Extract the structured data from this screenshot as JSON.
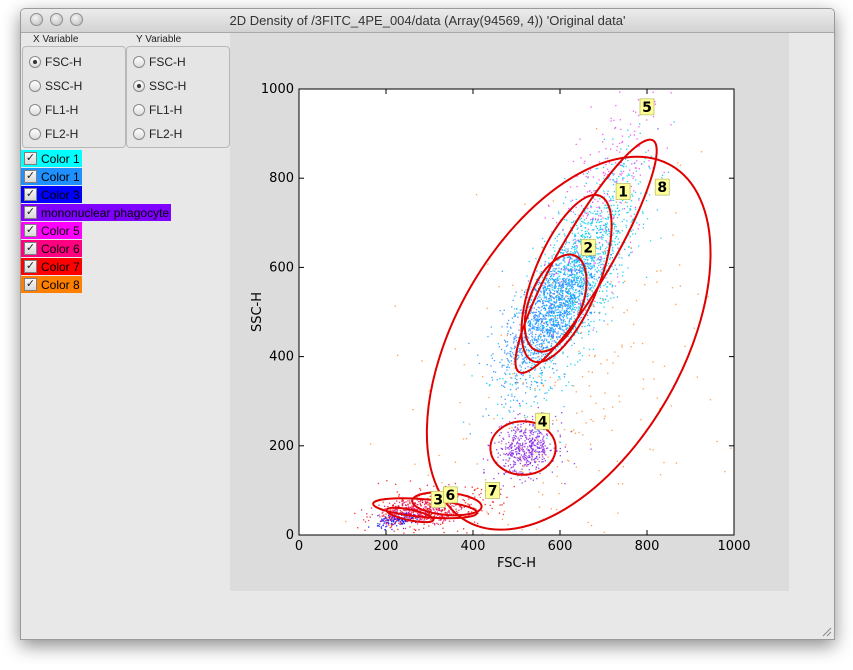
{
  "window": {
    "title": "2D Density of /3FITC_4PE_004/data (Array(94569, 4)) 'Original data'"
  },
  "x_variable": {
    "header": "X Variable",
    "options": [
      "FSC-H",
      "SSC-H",
      "FL1-H",
      "FL2-H"
    ],
    "selected": "FSC-H"
  },
  "y_variable": {
    "header": "Y Variable",
    "options": [
      "FSC-H",
      "SSC-H",
      "FL1-H",
      "FL2-H"
    ],
    "selected": "SSC-H"
  },
  "legend": {
    "items": [
      {
        "label": "Color 1",
        "color": "#00ffff",
        "text_color": "#000000",
        "checked": true
      },
      {
        "label": "Color 1",
        "color": "#1e90ff",
        "text_color": "#000000",
        "checked": true
      },
      {
        "label": "Color 3",
        "color": "#0000ff",
        "text_color": "#000000",
        "checked": true
      },
      {
        "label": "mononuclear phagocyte",
        "color": "#8000ff",
        "text_color": "#000000",
        "checked": true
      },
      {
        "label": "Color 5",
        "color": "#ff00ff",
        "text_color": "#000000",
        "checked": true
      },
      {
        "label": "Color 6",
        "color": "#ff0080",
        "text_color": "#000000",
        "checked": true
      },
      {
        "label": "Color 7",
        "color": "#ff0000",
        "text_color": "#000000",
        "checked": true
      },
      {
        "label": "Color 8",
        "color": "#ff8000",
        "text_color": "#000000",
        "checked": true
      }
    ]
  },
  "chart_data": {
    "type": "scatter",
    "xlabel": "FSC-H",
    "ylabel": "SSC-H",
    "xlim": [
      0,
      1000
    ],
    "ylim": [
      0,
      1000
    ],
    "xticks": [
      "0",
      "200",
      "400",
      "600",
      "800",
      "1000"
    ],
    "yticks": [
      "0",
      "200",
      "400",
      "600",
      "800",
      "1000"
    ],
    "background": "#ffffff",
    "ellipse_color": "#e00000",
    "ellipses": [
      {
        "label": "1",
        "cx": 615,
        "cy": 575,
        "rx": 75,
        "ry": 200,
        "angle": 22,
        "label_x": 745,
        "label_y": 770
      },
      {
        "label": "2",
        "cx": 590,
        "cy": 520,
        "rx": 60,
        "ry": 115,
        "angle": 22,
        "label_x": 665,
        "label_y": 645
      },
      {
        "label": "3",
        "cx": 255,
        "cy": 45,
        "rx": 55,
        "ry": 12,
        "angle": 12,
        "label_x": 320,
        "label_y": 80
      },
      {
        "label": "4",
        "cx": 515,
        "cy": 195,
        "rx": 75,
        "ry": 60,
        "angle": 0,
        "label_x": 560,
        "label_y": 255
      },
      {
        "label": "5",
        "cx": 660,
        "cy": 625,
        "rx": 60,
        "ry": 300,
        "angle": 30,
        "label_x": 800,
        "label_y": 960
      },
      {
        "label": "6",
        "cx": 290,
        "cy": 60,
        "rx": 120,
        "ry": 20,
        "angle": 5,
        "label_x": 348,
        "label_y": 90
      },
      {
        "label": "7",
        "cx": 340,
        "cy": 70,
        "rx": 80,
        "ry": 25,
        "angle": 5,
        "label_x": 445,
        "label_y": 100
      },
      {
        "label": "8",
        "cx": 620,
        "cy": 430,
        "rx": 260,
        "ry": 460,
        "angle": 30,
        "label_x": 835,
        "label_y": 780
      }
    ],
    "clusters": [
      {
        "name": "Color 1",
        "color": "#00ccee",
        "cx": 640,
        "cy": 580,
        "sx": 70,
        "sy": 120,
        "rho": 0.75,
        "n": 1400
      },
      {
        "name": "Color 1",
        "color": "#2a8cff",
        "cx": 575,
        "cy": 500,
        "sx": 55,
        "sy": 80,
        "rho": 0.7,
        "n": 1300
      },
      {
        "name": "Color 3",
        "color": "#1010ff",
        "cx": 230,
        "cy": 35,
        "sx": 25,
        "sy": 8,
        "rho": 0.4,
        "n": 160
      },
      {
        "name": "mononuclear phagocyte",
        "color": "#8a2be2",
        "cx": 520,
        "cy": 195,
        "sx": 35,
        "sy": 32,
        "rho": 0.2,
        "n": 500
      },
      {
        "name": "Color 5",
        "color": "#ee44ee",
        "cx": 700,
        "cy": 760,
        "sx": 60,
        "sy": 120,
        "rho": 0.6,
        "n": 250
      },
      {
        "name": "Color 6",
        "color": "#e0106a",
        "cx": 275,
        "cy": 55,
        "sx": 50,
        "sy": 14,
        "rho": 0.3,
        "n": 380
      },
      {
        "name": "Color 7",
        "color": "#ee1111",
        "cx": 300,
        "cy": 60,
        "sx": 80,
        "sy": 25,
        "rho": 0.3,
        "n": 260
      },
      {
        "name": "Color 8",
        "color": "#ff8c30",
        "cx": 620,
        "cy": 330,
        "sx": 190,
        "sy": 230,
        "rho": 0.5,
        "n": 260
      }
    ]
  }
}
